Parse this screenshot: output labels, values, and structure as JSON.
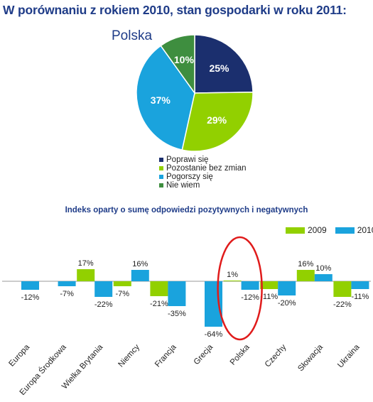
{
  "title": "W porównaniu z rokiem 2010, stan gospodarki w roku 2011:",
  "colors": {
    "navy": "#1b2f6e",
    "lime": "#92d000",
    "cyan": "#1aa3dd",
    "green": "#3e8e3f",
    "annotation": "#e01b1b"
  },
  "chart_data": [
    {
      "type": "pie",
      "title": "Polska",
      "slices": [
        {
          "label": "Poprawi się",
          "value": 25,
          "display": "25%",
          "color": "#1b2f6e"
        },
        {
          "label": "Pozostanie bez zmian",
          "value": 29,
          "display": "29%",
          "color": "#92d000"
        },
        {
          "label": "Pogorszy się",
          "value": 37,
          "display": "37%",
          "color": "#1aa3dd"
        },
        {
          "label": "Nie wiem",
          "value": 10,
          "display": "10%",
          "color": "#3e8e3f"
        }
      ],
      "legend_position": "bottom"
    },
    {
      "type": "bar",
      "title": "Indeks oparty o sumę odpowiedzi pozytywnych i negatywnych",
      "categories": [
        "Europa",
        "Europa Środkowa",
        "Wielka Brytania",
        "Niemcy",
        "Francja",
        "Grecja",
        "Polska",
        "Czechy",
        "Słowacja",
        "Ukraina"
      ],
      "series": [
        {
          "name": "2009",
          "color": "#92d000",
          "values": [
            null,
            null,
            17,
            -7,
            -21,
            null,
            1,
            -11,
            16,
            -22
          ],
          "labels": [
            "",
            "",
            "17%",
            "-7%",
            "-21%",
            "",
            "1%",
            "-11%",
            "16%",
            "-22%"
          ]
        },
        {
          "name": "2010",
          "color": "#1aa3dd",
          "values": [
            -12,
            -7,
            -22,
            16,
            -35,
            -64,
            -12,
            -20,
            10,
            -11
          ],
          "labels": [
            "-12%",
            "-7%",
            "-22%",
            "16%",
            "-35%",
            "-64%",
            "-12%",
            "-20%",
            "10%",
            "-11%"
          ]
        }
      ],
      "legend_position": "top-right",
      "highlight": "Polska"
    }
  ]
}
